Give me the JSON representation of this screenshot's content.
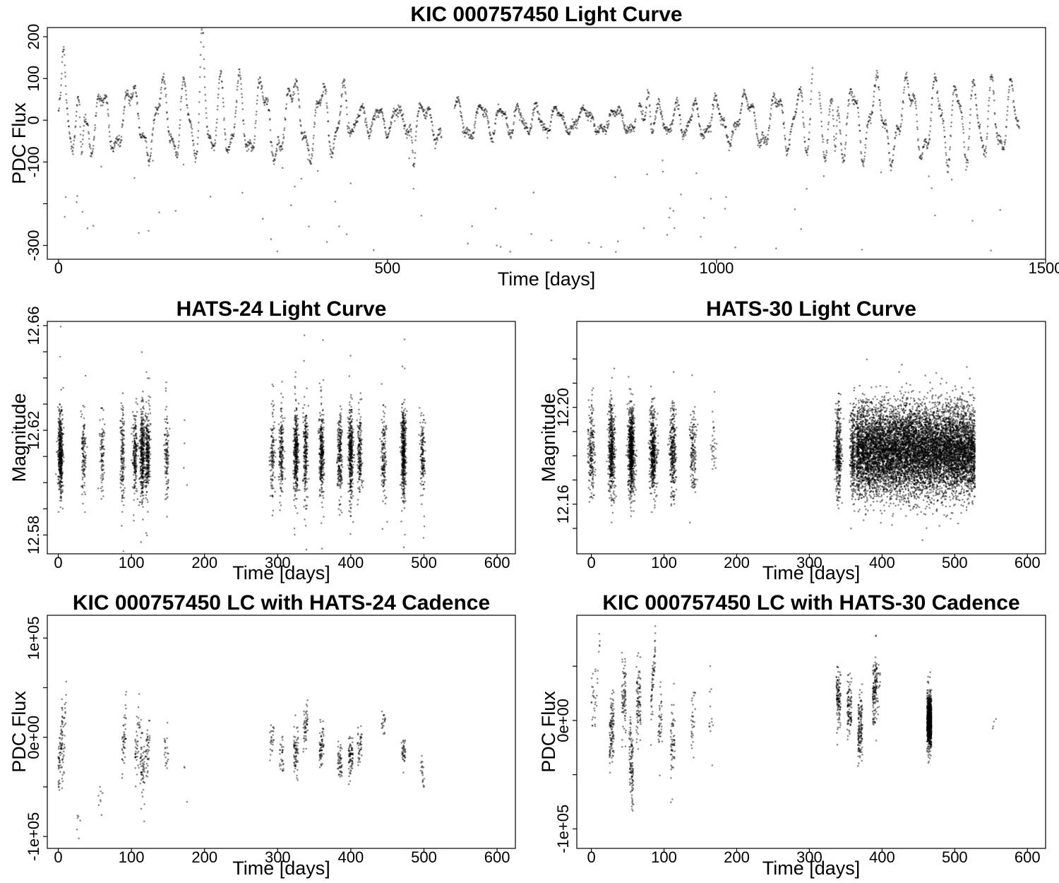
{
  "chart_data": [
    {
      "id": "kic",
      "type": "scatter",
      "title": "KIC 000757450 Light Curve",
      "xlabel": "Time [days]",
      "ylabel": "PDC Flux",
      "xlim": [
        -17,
        1500
      ],
      "ylim": [
        -333,
        222
      ],
      "xticks": [
        0,
        500,
        1000,
        1500
      ],
      "yticks": [
        -300,
        -200,
        -100,
        0,
        100,
        200
      ],
      "ytick_labels": [
        "-300",
        "",
        "-100",
        "0",
        "100",
        "200"
      ],
      "grid": false,
      "series": [
        {
          "time_range": [
            0,
            1460
          ],
          "gaps": [
            [
              582,
              602
            ],
            [
              877,
              882
            ],
            [
              1146,
              1156
            ]
          ],
          "cadence_days": 0.5,
          "typical_range": [
            -150,
            150
          ],
          "peaks": [
            {
              "x": 8,
              "y": 200
            },
            {
              "x": 218,
              "y": 190
            },
            {
              "x": 1146,
              "y": 170
            },
            {
              "x": 896,
              "y": 148
            }
          ],
          "dips": [
            {
              "x": 35,
              "y": -180
            },
            {
              "x": 540,
              "y": -158
            },
            {
              "x": 1180,
              "y": -175
            }
          ],
          "outlier_range": [
            -320,
            -90
          ]
        }
      ]
    },
    {
      "id": "hats24",
      "type": "scatter",
      "title": "HATS-24 Light Curve",
      "xlabel": "Time [days]",
      "ylabel": "Magnitude",
      "xlim": [
        -15,
        625
      ],
      "ylim": [
        12.5728,
        12.6616
      ],
      "xticks": [
        0,
        100,
        200,
        300,
        400,
        500,
        600
      ],
      "yticks": [
        12.58,
        12.59,
        12.6,
        12.61,
        12.62,
        12.63,
        12.64,
        12.65,
        12.66
      ],
      "ytick_labels": [
        "12.58",
        "",
        "",
        "",
        "12.62",
        "",
        "",
        "",
        "12.66"
      ],
      "grid": false,
      "series": [
        {
          "center": 12.611,
          "spread": 0.008,
          "clusters": [
            [
              3,
              450
            ],
            [
              35,
              120
            ],
            [
              60,
              90
            ],
            [
              88,
              150
            ],
            [
              105,
              200
            ],
            [
              115,
              350
            ],
            [
              122,
              280
            ],
            [
              148,
              110
            ],
            [
              173,
              4
            ],
            [
              293,
              120
            ],
            [
              305,
              180
            ],
            [
              325,
              350
            ],
            [
              338,
              220
            ],
            [
              360,
              300
            ],
            [
              385,
              220
            ],
            [
              400,
              380
            ],
            [
              412,
              180
            ],
            [
              445,
              150
            ],
            [
              472,
              450
            ],
            [
              498,
              150
            ]
          ]
        }
      ]
    },
    {
      "id": "hats30",
      "type": "scatter",
      "title": "HATS-30 Light Curve",
      "xlabel": "Time [days]",
      "ylabel": "Magnitude",
      "xlim": [
        -20,
        625
      ],
      "ylim": [
        12.1395,
        12.2355
      ],
      "xticks": [
        0,
        100,
        200,
        300,
        400,
        500,
        600
      ],
      "yticks": [
        12.15,
        12.16,
        12.17,
        12.18,
        12.19,
        12.2,
        12.21,
        12.22
      ],
      "ytick_labels": [
        "",
        "12.16",
        "",
        "",
        "",
        "12.20",
        "",
        ""
      ],
      "grid": false,
      "series": [
        {
          "center": 12.182,
          "spread": 0.009,
          "dense_x": [
            365,
            528
          ],
          "dense_points": 9000,
          "clusters": [
            [
              0,
              200
            ],
            [
              28,
              450
            ],
            [
              55,
              700
            ],
            [
              85,
              450
            ],
            [
              112,
              300
            ],
            [
              140,
              150
            ],
            [
              168,
              30
            ],
            [
              340,
              350
            ],
            [
              360,
              300
            ]
          ]
        }
      ]
    },
    {
      "id": "kic_h24",
      "type": "scatter",
      "title": "KIC 000757450 LC with HATS-24 Cadence",
      "xlabel": "Time [days]",
      "ylabel": "PDC Flux",
      "xlim": [
        -15,
        625
      ],
      "ylim": [
        -112000,
        123000
      ],
      "xticks": [
        0,
        100,
        200,
        300,
        400,
        500,
        600
      ],
      "yticks": [
        -100000,
        -50000,
        0,
        50000,
        100000
      ],
      "ytick_labels": [
        "-1e+05",
        "",
        "0e+00",
        "",
        "1e+05"
      ],
      "grid": false,
      "series": [
        {
          "clusters": [
            [
              3,
              70,
              -10000,
              40000,
              25000
            ],
            [
              8,
              35,
              0,
              80000,
              28000
            ],
            [
              28,
              6,
              -85000,
              5000,
              15000
            ],
            [
              58,
              8,
              -60000,
              -5000,
              15000
            ],
            [
              90,
              45,
              0,
              30000,
              25000
            ],
            [
              108,
              40,
              -10000,
              20000,
              25000
            ],
            [
              115,
              60,
              -30000,
              -30000,
              30000
            ],
            [
              122,
              40,
              -10000,
              20000,
              25000
            ],
            [
              148,
              20,
              -10000,
              15000,
              20000
            ],
            [
              175,
              3,
              -55000,
              -55000,
              5000
            ],
            [
              292,
              25,
              -5000,
              0,
              15000
            ],
            [
              305,
              30,
              -20000,
              -10000,
              15000
            ],
            [
              325,
              70,
              -15000,
              0,
              20000
            ],
            [
              338,
              50,
              10000,
              10000,
              15000
            ],
            [
              360,
              65,
              -10000,
              10000,
              18000
            ],
            [
              385,
              50,
              -25000,
              -5000,
              15000
            ],
            [
              400,
              75,
              -20000,
              0,
              15000
            ],
            [
              412,
              40,
              -10000,
              10000,
              15000
            ],
            [
              445,
              20,
              15000,
              0,
              15000
            ],
            [
              472,
              40,
              -15000,
              -5000,
              12000
            ],
            [
              498,
              20,
              -35000,
              -35000,
              12000
            ]
          ]
        }
      ]
    },
    {
      "id": "kic_h30",
      "type": "scatter",
      "title": "KIC 000757450 LC with HATS-30 Cadence",
      "xlabel": "Time [days]",
      "ylabel": "PDC Flux",
      "xlim": [
        -20,
        625
      ],
      "ylim": [
        -118000,
        97000
      ],
      "xticks": [
        0,
        100,
        200,
        300,
        400,
        500,
        600
      ],
      "yticks": [
        -100000,
        -50000,
        0,
        50000
      ],
      "ytick_labels": [
        "-1e+05",
        "",
        "0e+00",
        ""
      ],
      "grid": false,
      "series": [
        {
          "clusters": [
            [
              3,
              25,
              20000,
              20000,
              35000
            ],
            [
              10,
              12,
              60000,
              80000,
              12000
            ],
            [
              28,
              110,
              -10000,
              20000,
              30000
            ],
            [
              45,
              80,
              20000,
              0,
              30000
            ],
            [
              55,
              110,
              -40000,
              -30000,
              30000
            ],
            [
              65,
              90,
              20000,
              0,
              30000
            ],
            [
              85,
              60,
              40000,
              60000,
              15000
            ],
            [
              95,
              40,
              0,
              30000,
              25000
            ],
            [
              112,
              60,
              -20000,
              0,
              30000
            ],
            [
              140,
              30,
              0,
              20000,
              25000
            ],
            [
              165,
              12,
              0,
              -10000,
              30000
            ],
            [
              340,
              120,
              20000,
              -10000,
              25000
            ],
            [
              355,
              100,
              10000,
              0,
              25000
            ],
            [
              370,
              140,
              -5000,
              0,
              25000
            ],
            [
              390,
              130,
              30000,
              10000,
              25000
            ],
            [
              395,
              20,
              30000,
              30000,
              30000
            ],
            [
              465,
              900,
              0,
              0,
              20000
            ],
            [
              555,
              4,
              0,
              0,
              12000
            ]
          ]
        }
      ]
    }
  ]
}
